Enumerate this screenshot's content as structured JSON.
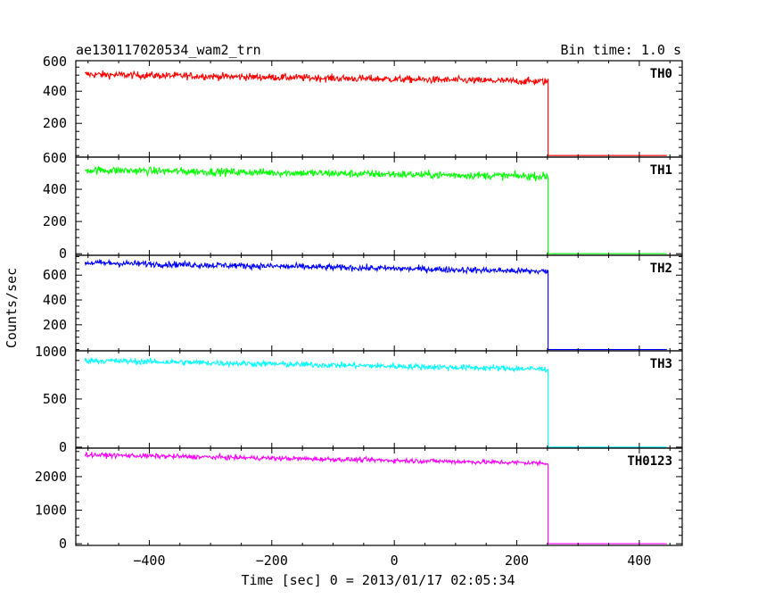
{
  "chart_data": {
    "type": "line",
    "title": "ae130117020534_wam2_trn",
    "subtitle": "Bin time: 1.0 s",
    "xlabel": "Time [sec] 0 = 2013/01/17 02:05:34",
    "ylabel": "Counts/sec",
    "xlim": [
      -520,
      470
    ],
    "x_ticks": [
      -400,
      -200,
      0,
      200,
      400
    ],
    "x_tick_labels": [
      "−400",
      "−200",
      "0",
      "200",
      "400"
    ],
    "data_start": -505,
    "data_end": 445,
    "drop_time": 251,
    "grid": false,
    "series": [
      {
        "name": "TH0",
        "color": "#ff0000",
        "ylim": [
          -10,
          590
        ],
        "ticks": [
          200,
          400
        ],
        "tick_labels": [
          "200",
          "400"
        ],
        "top_label": "600",
        "level_start": 505,
        "level_end": 460,
        "noise": 16,
        "after_drop": 0
      },
      {
        "name": "TH1",
        "color": "#00ff00",
        "ylim": [
          -10,
          600
        ],
        "ticks": [
          0,
          200,
          400
        ],
        "tick_labels": [
          "0",
          "200",
          "400"
        ],
        "top_label": "600",
        "level_start": 520,
        "level_end": 480,
        "noise": 17,
        "after_drop": 0
      },
      {
        "name": "TH2",
        "color": "#0000ff",
        "ylim": [
          -10,
          760
        ],
        "ticks": [
          200,
          400,
          600
        ],
        "tick_labels": [
          "200",
          "400",
          "600"
        ],
        "top_label": "",
        "level_start": 700,
        "level_end": 630,
        "noise": 18,
        "after_drop": 0
      },
      {
        "name": "TH3",
        "color": "#00ffff",
        "ylim": [
          -10,
          1000
        ],
        "ticks": [
          0,
          500
        ],
        "tick_labels": [
          "0",
          "500"
        ],
        "top_label": "1000",
        "level_start": 900,
        "level_end": 810,
        "noise": 22,
        "after_drop": 0
      },
      {
        "name": "TH0123",
        "color": "#ff00ff",
        "ylim": [
          -50,
          2850
        ],
        "ticks": [
          0,
          1000,
          2000
        ],
        "tick_labels": [
          "0",
          "1000",
          "2000"
        ],
        "top_label": "",
        "level_start": 2650,
        "level_end": 2400,
        "noise": 50,
        "after_drop": 0
      }
    ]
  }
}
